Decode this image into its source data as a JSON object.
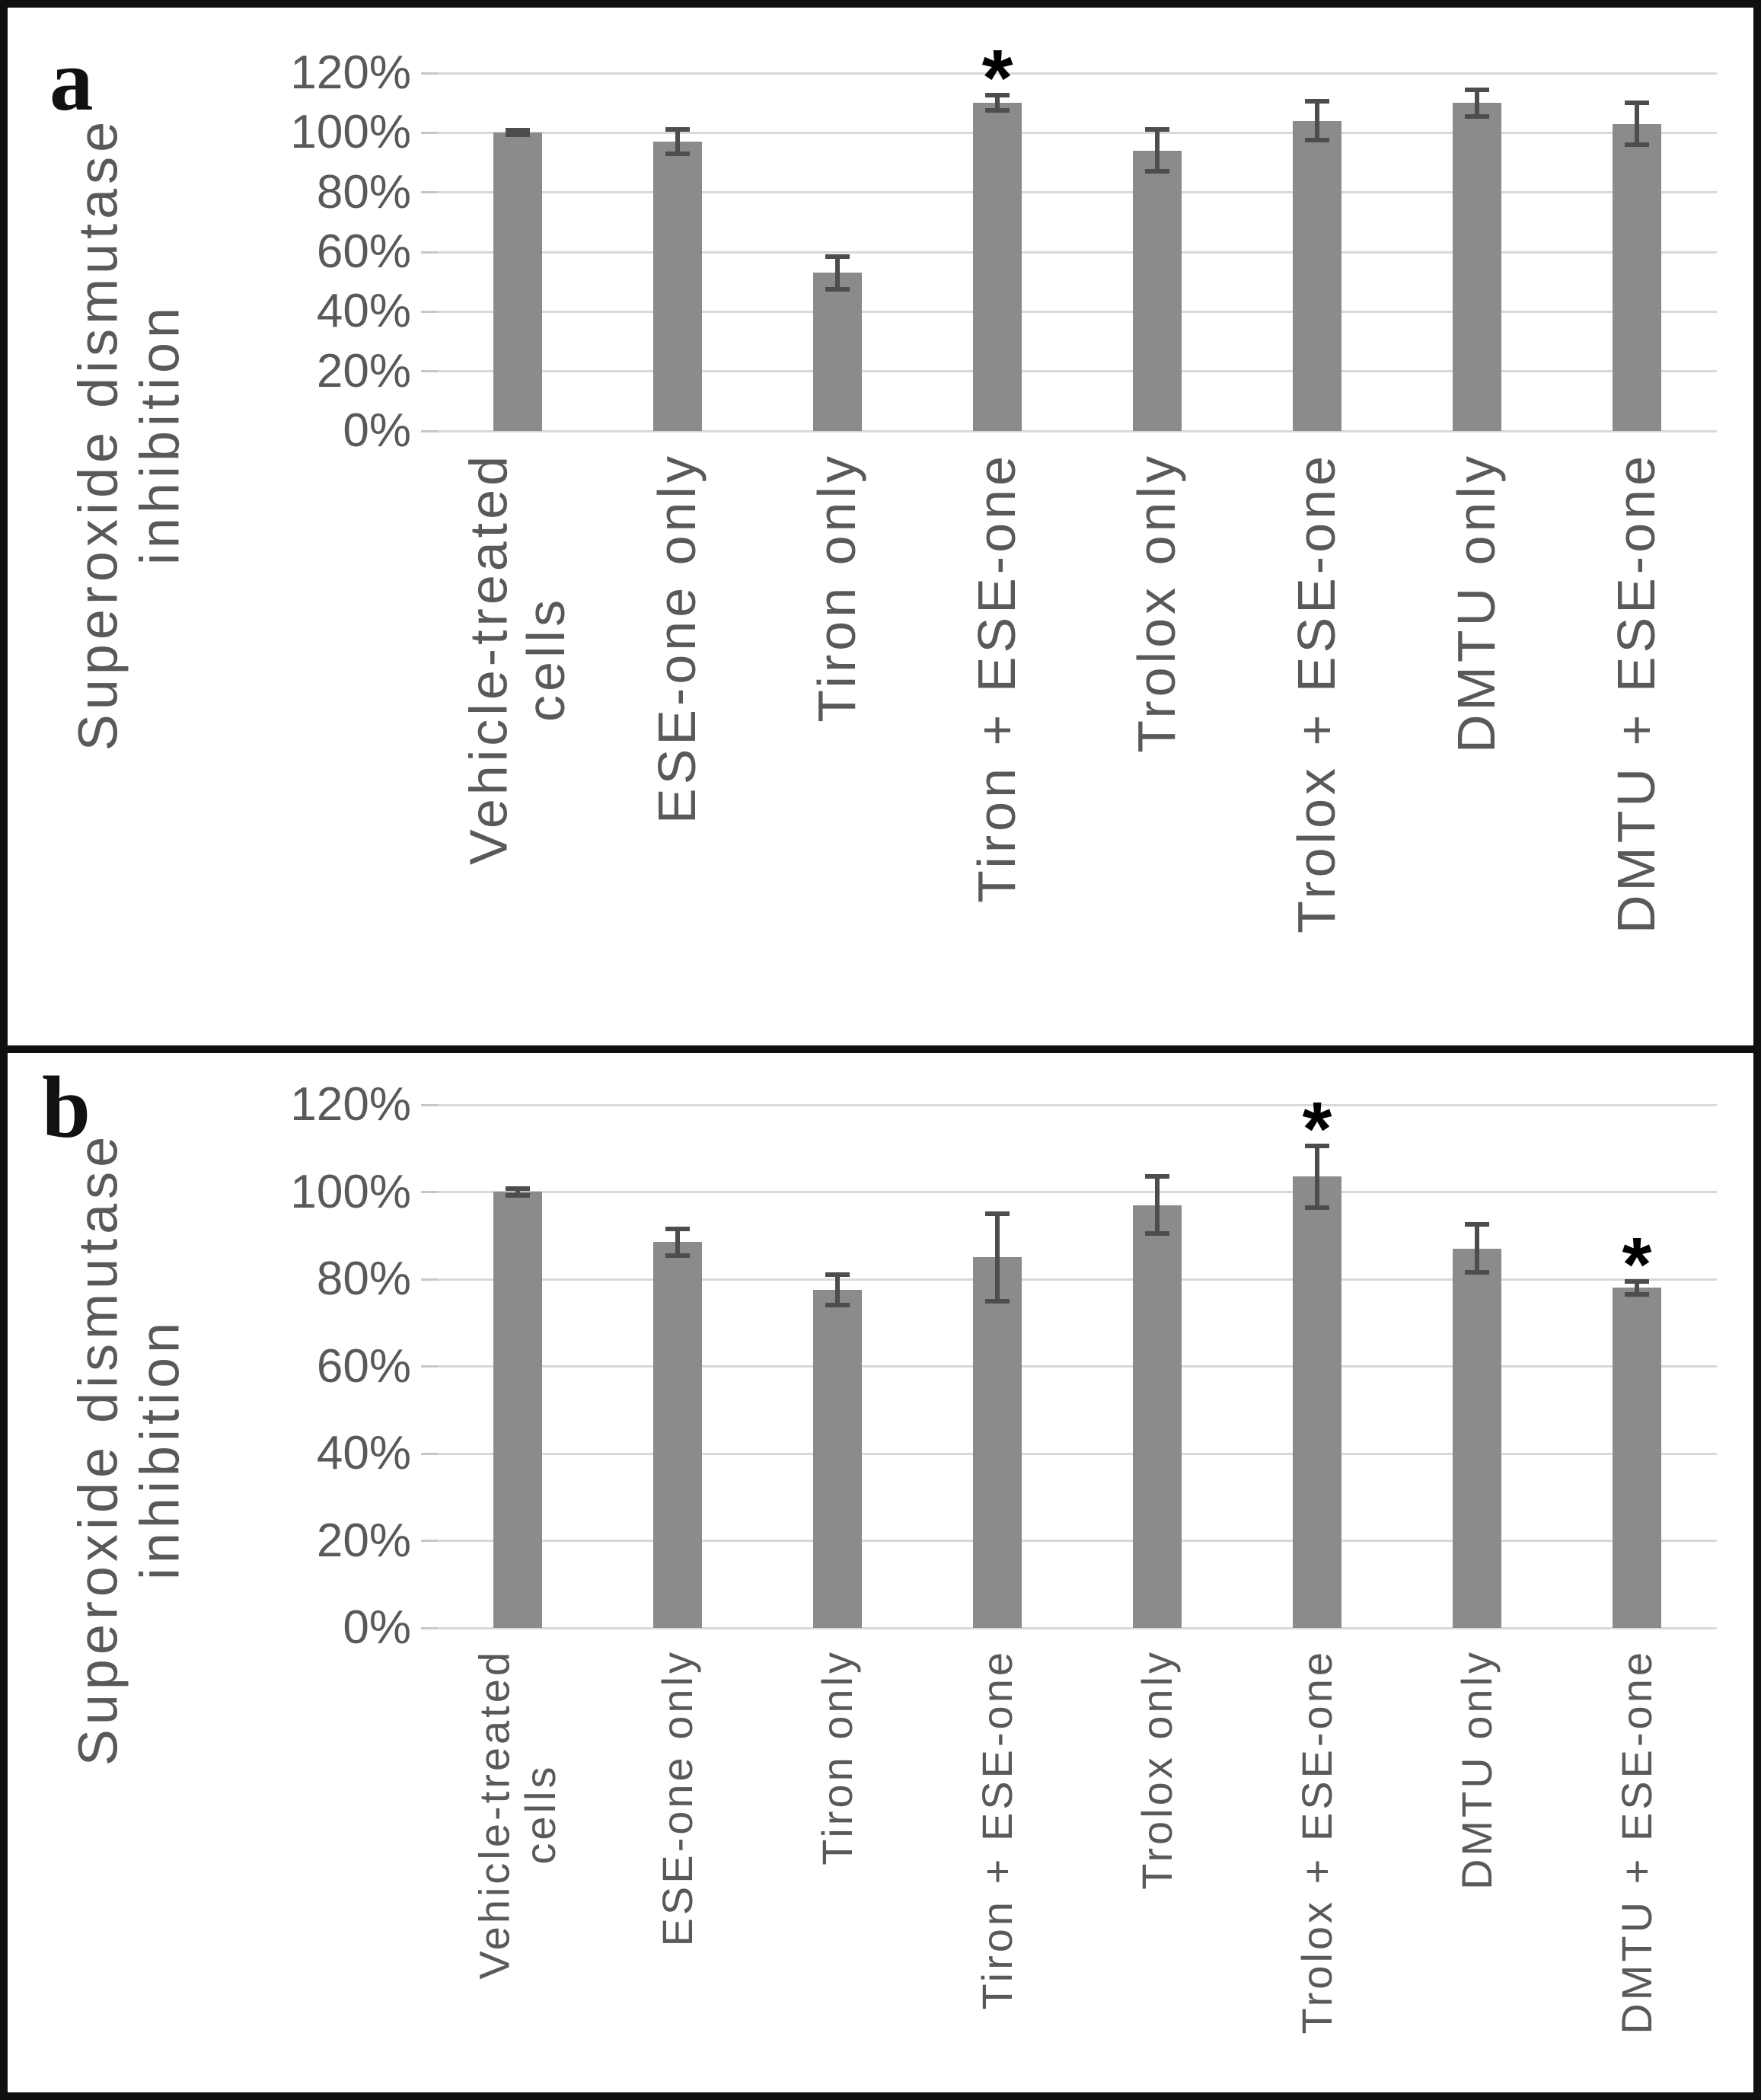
{
  "sig_marker": "*",
  "colors": {
    "bar": "#8b8b8b",
    "error_bar": "#4d4d4d",
    "gridline": "#d9d9d9",
    "axis_text": "#595959",
    "panel_letter": "#111111",
    "border": "#101010",
    "significance": "#000000"
  },
  "chart_data": [
    {
      "type": "bar",
      "panel_label": "a",
      "title": "",
      "ylabel": "Superoxide dismutase inhibition",
      "ylabel_display": "Superoxide dismutase\ninhibition",
      "xlabel": "",
      "ylim": [
        0,
        120
      ],
      "yticks": [
        "120%",
        "100%",
        "80%",
        "60%",
        "40%",
        "20%",
        "0%"
      ],
      "grid": true,
      "legend_position": "none",
      "categories": [
        "Vehicle-treated cells",
        "ESE-one only",
        "Tiron only",
        "Tiron + ESE-one",
        "Trolox only",
        "Trolox + ESE-one",
        "DMTU only",
        "DMTU + ESE-one"
      ],
      "categories_display": [
        "Vehicle-treated\ncells",
        "ESE-one only",
        "Tiron only",
        "Tiron + ESE-one",
        "Trolox only",
        "Trolox + ESE-one",
        "DMTU only",
        "DMTU + ESE-one"
      ],
      "values": [
        100,
        97,
        53,
        110,
        94,
        104,
        110,
        103
      ],
      "errors": [
        0.8,
        4,
        5.5,
        2.5,
        7,
        6.5,
        4.5,
        7
      ],
      "significant": [
        false,
        false,
        false,
        true,
        false,
        false,
        false,
        false
      ]
    },
    {
      "type": "bar",
      "panel_label": "b",
      "title": "",
      "ylabel": "Superoxide dismutase inhibition",
      "ylabel_display": "Superoxide dismutase\ninhibition",
      "xlabel": "",
      "ylim": [
        0,
        120
      ],
      "yticks": [
        "120%",
        "100%",
        "80%",
        "60%",
        "40%",
        "20%",
        "0%"
      ],
      "grid": true,
      "legend_position": "none",
      "categories": [
        "Vehicle-treated cells",
        "ESE-one only",
        "Tiron only",
        "Tiron + ESE-one",
        "Trolox only",
        "Trolox + ESE-one",
        "DMTU only",
        "DMTU + ESE-one"
      ],
      "categories_display": [
        "Vehicle-treated\ncells",
        "ESE-one only",
        "Tiron only",
        "Tiron + ESE-one",
        "Trolox only",
        "Trolox + ESE-one",
        "DMTU only",
        "DMTU + ESE-one"
      ],
      "values": [
        100,
        88.5,
        77.5,
        85,
        97,
        103.5,
        87,
        78
      ],
      "errors": [
        0.8,
        3,
        3.5,
        10,
        6.5,
        7,
        5.5,
        1.5
      ],
      "significant": [
        false,
        false,
        false,
        false,
        false,
        true,
        false,
        true
      ]
    }
  ]
}
